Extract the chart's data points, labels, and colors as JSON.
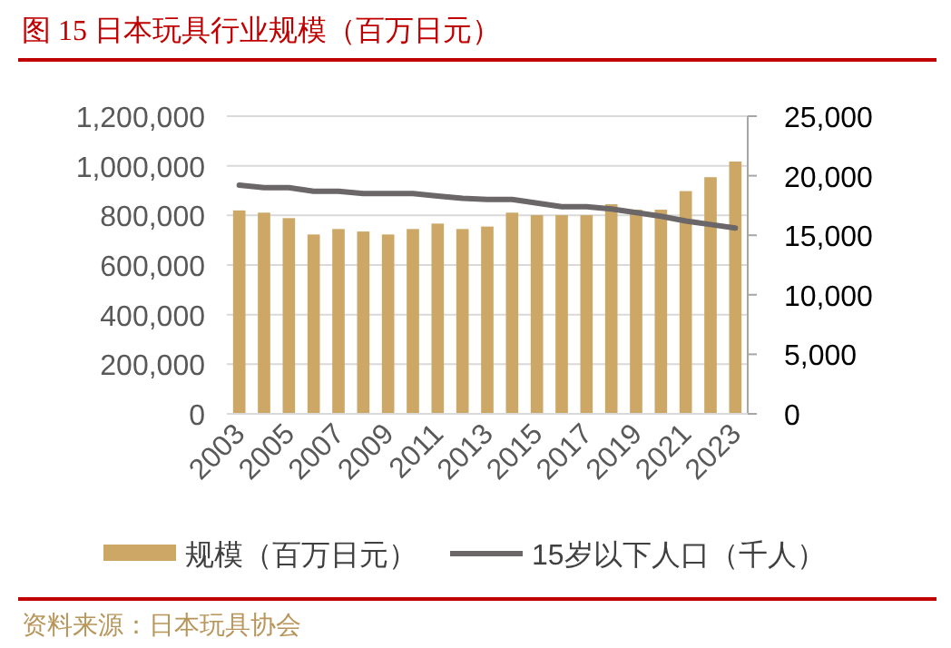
{
  "chart_data": {
    "type": "bar",
    "title": "图 15    日本玩具行业规模（百万日元）",
    "categories": [
      "2003",
      null,
      "2005",
      null,
      "2007",
      null,
      "2009",
      null,
      "2011",
      null,
      "2013",
      null,
      "2015",
      null,
      "2017",
      null,
      "2019",
      null,
      "2021",
      null,
      "2023"
    ],
    "series": [
      {
        "name": "规模（百万日元）",
        "color": "#cca766",
        "values": [
          820000,
          811000,
          789000,
          723000,
          745000,
          735000,
          723000,
          745000,
          767000,
          745000,
          755000,
          811000,
          801000,
          801000,
          801000,
          845000,
          823000,
          823000,
          898000,
          954000,
          1017000
        ]
      },
      {
        "name": "15岁以下人口（千人）",
        "type": "line",
        "axis": "y2",
        "color": "#6b6667",
        "values": [
          19200,
          19000,
          19000,
          18700,
          18700,
          18500,
          18500,
          18500,
          18300,
          18100,
          18000,
          18000,
          17700,
          17400,
          17400,
          17200,
          16900,
          16600,
          16200,
          15900,
          15600
        ]
      }
    ],
    "ylim": [
      0,
      1200000
    ],
    "yticks": [
      {
        "value": 0,
        "label": "0"
      },
      {
        "value": 200000,
        "label": "200,000"
      },
      {
        "value": 400000,
        "label": "400,000"
      },
      {
        "value": 600000,
        "label": "600,000"
      },
      {
        "value": 800000,
        "label": "800,000"
      },
      {
        "value": 1000000,
        "label": "1,000,000"
      },
      {
        "value": 1200000,
        "label": "1,200,000"
      }
    ],
    "y2lim": [
      0,
      25000
    ],
    "y2ticks": [
      {
        "value": 0,
        "label": "0"
      },
      {
        "value": 5000,
        "label": "5,000"
      },
      {
        "value": 10000,
        "label": "10,000"
      },
      {
        "value": 15000,
        "label": "15,000"
      },
      {
        "value": 20000,
        "label": "20,000"
      },
      {
        "value": 25000,
        "label": "25,000"
      }
    ],
    "grid": "y",
    "legend": "bottom",
    "annotations": [
      "资料来源：日本玩具协会"
    ]
  }
}
